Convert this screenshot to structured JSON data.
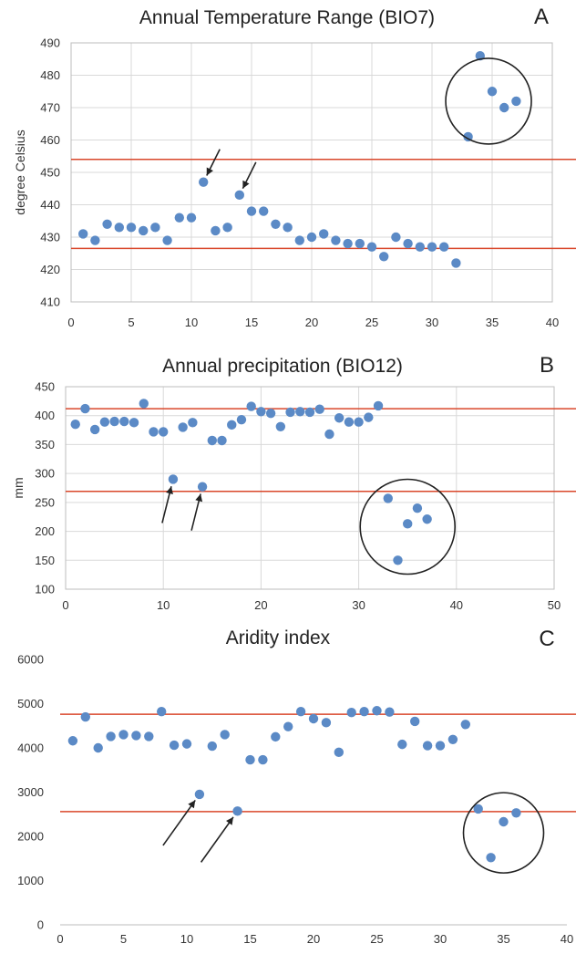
{
  "chart_data": [
    {
      "type": "scatter",
      "title": "Annual Temperature Range (BIO7)",
      "panel_letter": "A",
      "ylabel": "degree Celsius",
      "xlabel": "",
      "xlim": [
        0,
        40
      ],
      "ylim": [
        410,
        490
      ],
      "x_ticks": [
        0,
        5,
        10,
        15,
        20,
        25,
        30,
        35,
        40
      ],
      "y_ticks": [
        410,
        420,
        430,
        440,
        450,
        460,
        470,
        480,
        490
      ],
      "grid": true,
      "color": "#5b8ac6",
      "reference_lines": [
        454,
        426.5
      ],
      "reference_line_color": "#d9472b",
      "highlight_circle": {
        "x": 34.7,
        "y": 472
      },
      "arrows_point_to": [
        {
          "x": 11,
          "y": 447
        },
        {
          "x": 14,
          "y": 443
        }
      ],
      "x": [
        1,
        2,
        3,
        4,
        5,
        6,
        7,
        8,
        9,
        10,
        11,
        12,
        13,
        14,
        15,
        16,
        17,
        18,
        19,
        20,
        21,
        22,
        23,
        24,
        25,
        26,
        27,
        28,
        29,
        30,
        31,
        32,
        33,
        34,
        35,
        36,
        37
      ],
      "y": [
        431,
        429,
        434,
        433,
        433,
        432,
        433,
        429,
        436,
        436,
        447,
        432,
        433,
        443,
        438,
        438,
        434,
        433,
        429,
        430,
        431,
        429,
        428,
        428,
        427,
        424,
        430,
        428,
        427,
        427,
        427,
        422,
        461,
        486,
        475,
        470,
        472
      ]
    },
    {
      "type": "scatter",
      "title": "Annual precipitation (BIO12)",
      "panel_letter": "B",
      "ylabel": "mm",
      "xlabel": "",
      "xlim": [
        0,
        50
      ],
      "ylim": [
        100,
        450
      ],
      "x_ticks": [
        0,
        10,
        20,
        30,
        40,
        50
      ],
      "y_ticks": [
        100,
        150,
        200,
        250,
        300,
        350,
        400,
        450
      ],
      "grid": true,
      "color": "#5b8ac6",
      "reference_lines": [
        412,
        269
      ],
      "reference_line_color": "#d9472b",
      "highlight_circle": {
        "x": 35,
        "y": 208
      },
      "arrows_point_to": [
        {
          "x": 11,
          "y": 290
        },
        {
          "x": 14,
          "y": 277
        }
      ],
      "x": [
        1,
        2,
        3,
        4,
        5,
        6,
        7,
        8,
        9,
        10,
        11,
        12,
        13,
        14,
        15,
        16,
        17,
        18,
        19,
        20,
        21,
        22,
        23,
        24,
        25,
        26,
        27,
        28,
        29,
        30,
        31,
        32,
        33,
        34,
        35,
        36,
        37
      ],
      "y": [
        385,
        412,
        376,
        389,
        390,
        390,
        388,
        421,
        372,
        372,
        290,
        380,
        388,
        277,
        357,
        357,
        384,
        393,
        416,
        407,
        404,
        381,
        406,
        407,
        406,
        411,
        368,
        396,
        389,
        389,
        397,
        417,
        257,
        150,
        213,
        240,
        221
      ]
    },
    {
      "type": "scatter",
      "title": "Aridity index",
      "panel_letter": "C",
      "ylabel": "",
      "xlabel": "",
      "xlim": [
        0,
        40
      ],
      "ylim": [
        0,
        6000
      ],
      "x_ticks": [
        0,
        5,
        10,
        15,
        20,
        25,
        30,
        35,
        40
      ],
      "y_ticks": [
        0,
        1000,
        2000,
        3000,
        4000,
        5000,
        6000
      ],
      "grid": false,
      "color": "#5b8ac6",
      "reference_lines": [
        4760,
        2560
      ],
      "reference_line_color": "#d9472b",
      "highlight_circle": {
        "x": 35,
        "y": 2080
      },
      "arrows_point_to": [
        {
          "x": 11,
          "y": 2950
        },
        {
          "x": 14,
          "y": 2570
        }
      ],
      "x": [
        1,
        2,
        3,
        4,
        5,
        6,
        7,
        8,
        9,
        10,
        11,
        12,
        13,
        14,
        15,
        16,
        17,
        18,
        19,
        20,
        21,
        22,
        23,
        24,
        25,
        26,
        27,
        28,
        29,
        30,
        31,
        32,
        33,
        34,
        35,
        36
      ],
      "y": [
        4160,
        4700,
        4000,
        4260,
        4300,
        4280,
        4260,
        4820,
        4060,
        4090,
        2950,
        4040,
        4300,
        2570,
        3730,
        3730,
        4250,
        4480,
        4820,
        4660,
        4570,
        3900,
        4800,
        4820,
        4840,
        4810,
        4080,
        4600,
        4050,
        4050,
        4190,
        4530,
        2620,
        1520,
        2330,
        2530
      ]
    }
  ]
}
